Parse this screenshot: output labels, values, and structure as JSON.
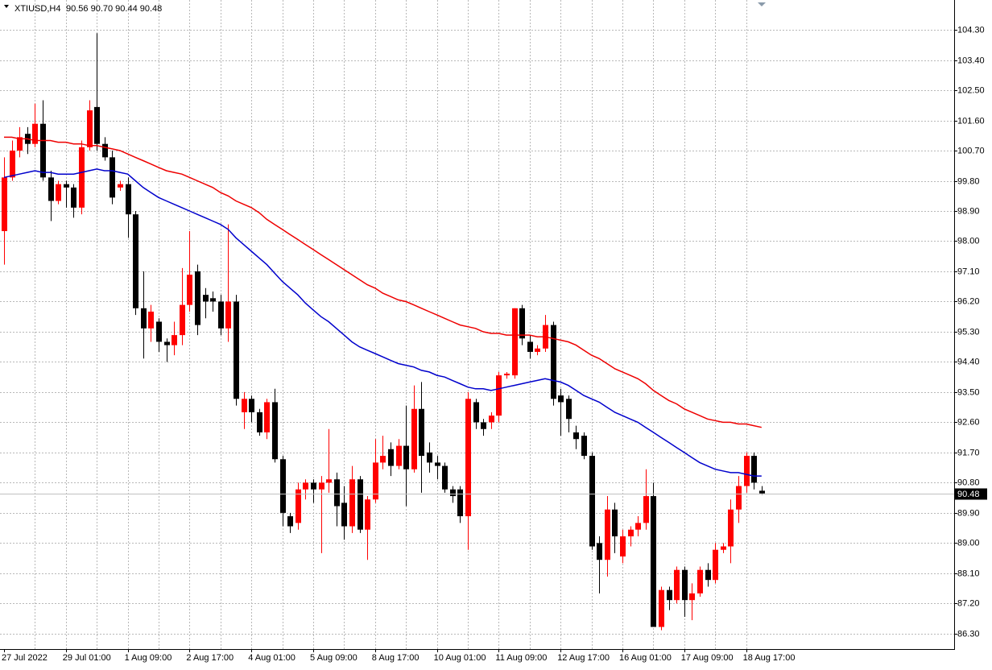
{
  "chart_data": {
    "type": "candlestick",
    "title": "XTIUSD,H4",
    "subtitle": "90.56 90.70 90.44 90.48",
    "categories": [
      "27 Jul 2022",
      null,
      null,
      null,
      null,
      null,
      null,
      null,
      "29 Jul 01:00",
      null,
      null,
      null,
      null,
      null,
      null,
      null,
      "1 Aug 09:00",
      null,
      null,
      null,
      null,
      null,
      null,
      null,
      "2 Aug 17:00",
      null,
      null,
      null,
      null,
      null,
      null,
      null,
      "4 Aug 01:00",
      null,
      null,
      null,
      null,
      null,
      null,
      null,
      "5 Aug 09:00",
      null,
      null,
      null,
      null,
      null,
      null,
      null,
      "8 Aug 17:00",
      null,
      null,
      null,
      null,
      null,
      null,
      null,
      "10 Aug 01:00",
      null,
      null,
      null,
      null,
      null,
      null,
      null,
      "11 Aug 09:00",
      null,
      null,
      null,
      null,
      null,
      null,
      null,
      "12 Aug 17:00",
      null,
      null,
      null,
      null,
      null,
      null,
      null,
      "16 Aug 01:00",
      null,
      null,
      null,
      null,
      null,
      null,
      null,
      "17 Aug 09:00",
      null,
      null,
      null,
      null,
      null,
      null,
      null,
      "18 Aug 17:00",
      null,
      null
    ],
    "open": [
      98.3,
      99.9,
      100.7,
      101.2,
      100.9,
      101.5,
      99.9,
      99.2,
      99.7,
      99.6,
      99.0,
      100.8,
      102.0,
      100.9,
      100.5,
      99.6,
      99.7,
      98.8,
      96.0,
      95.4,
      95.6,
      95.0,
      94.9,
      95.2,
      96.1,
      97.1,
      96.4,
      96.3,
      96.2,
      95.4,
      96.2,
      92.9,
      93.3,
      92.9,
      92.3,
      93.2,
      91.5,
      89.8,
      89.6,
      90.6,
      90.8,
      90.6,
      90.8,
      90.9,
      90.2,
      89.5,
      90.9,
      89.4,
      90.3,
      91.4,
      91.8,
      91.3,
      91.9,
      91.2,
      93.0,
      91.7,
      91.4,
      91.3,
      90.6,
      90.6,
      89.8,
      93.2,
      92.6,
      92.6,
      92.8,
      94.0,
      94.0,
      96.0,
      95.0,
      94.7,
      94.8,
      95.5,
      93.4,
      93.3,
      92.3,
      92.2,
      91.6,
      89.0,
      88.5,
      90.0,
      88.6,
      89.2,
      89.4,
      89.6,
      90.4,
      86.5,
      87.6,
      87.3,
      88.2,
      87.3,
      87.5,
      88.2,
      87.9,
      88.8,
      88.9,
      90.0,
      90.7,
      91.6,
      90.56
    ],
    "high": [
      100.5,
      101.0,
      101.4,
      101.4,
      102.1,
      102.2,
      100.1,
      99.8,
      99.8,
      99.7,
      101.0,
      102.2,
      104.2,
      101.1,
      100.7,
      99.8,
      99.9,
      98.9,
      97.1,
      96.1,
      95.7,
      95.1,
      95.6,
      97.2,
      98.3,
      97.3,
      96.6,
      96.5,
      96.4,
      98.5,
      96.4,
      93.5,
      93.4,
      93.0,
      93.3,
      93.6,
      91.6,
      89.9,
      90.8,
      90.9,
      90.9,
      91.0,
      92.4,
      91.1,
      90.7,
      91.3,
      91.0,
      90.4,
      92.1,
      92.2,
      92.0,
      92.1,
      93.1,
      93.7,
      93.8,
      92.0,
      91.6,
      91.4,
      90.7,
      90.7,
      93.5,
      93.3,
      92.7,
      92.9,
      94.1,
      94.1,
      96.0,
      96.1,
      95.2,
      94.9,
      95.8,
      95.6,
      93.6,
      93.4,
      92.5,
      92.3,
      91.7,
      89.2,
      90.4,
      90.2,
      89.4,
      89.5,
      89.8,
      91.2,
      90.8,
      87.7,
      87.7,
      88.3,
      88.3,
      87.8,
      88.3,
      88.4,
      89.0,
      89.0,
      90.3,
      91.0,
      91.7,
      91.7,
      90.7
    ],
    "low": [
      97.3,
      99.8,
      100.5,
      100.6,
      100.8,
      99.8,
      98.6,
      99.1,
      99.0,
      98.7,
      98.8,
      100.7,
      100.7,
      100.4,
      99.1,
      99.5,
      98.1,
      95.8,
      94.5,
      95.0,
      94.7,
      94.4,
      94.6,
      94.9,
      95.9,
      95.2,
      95.7,
      95.9,
      95.2,
      95.0,
      93.1,
      92.4,
      92.6,
      92.2,
      92.1,
      91.4,
      89.5,
      89.3,
      89.4,
      90.3,
      90.2,
      88.7,
      90.5,
      89.5,
      89.1,
      89.3,
      89.3,
      88.5,
      90.2,
      91.2,
      91.0,
      91.2,
      90.1,
      91.1,
      90.5,
      91.1,
      90.9,
      90.5,
      90.2,
      89.6,
      88.8,
      92.4,
      92.2,
      92.4,
      92.6,
      93.9,
      93.9,
      94.9,
      94.5,
      94.6,
      94.7,
      93.1,
      92.2,
      92.3,
      91.8,
      91.5,
      88.8,
      87.5,
      88.0,
      88.7,
      88.4,
      88.9,
      89.2,
      89.4,
      86.5,
      86.4,
      87.0,
      87.2,
      86.8,
      86.7,
      87.4,
      87.7,
      87.8,
      88.7,
      88.4,
      89.6,
      90.5,
      90.6,
      90.44
    ],
    "close": [
      99.9,
      100.7,
      101.1,
      100.9,
      101.5,
      99.9,
      99.2,
      99.7,
      99.6,
      99.0,
      100.8,
      101.9,
      100.9,
      100.5,
      99.3,
      99.7,
      98.8,
      96.0,
      95.4,
      95.9,
      95.0,
      94.9,
      95.2,
      96.1,
      97.0,
      95.5,
      96.2,
      96.2,
      95.4,
      96.2,
      93.3,
      93.3,
      92.9,
      92.3,
      93.2,
      91.5,
      89.9,
      89.5,
      90.6,
      90.8,
      90.6,
      90.8,
      90.9,
      90.1,
      89.5,
      90.9,
      89.4,
      90.3,
      91.4,
      91.6,
      91.3,
      91.9,
      91.2,
      93.0,
      91.6,
      91.4,
      91.3,
      90.6,
      90.4,
      89.8,
      93.3,
      92.6,
      92.4,
      92.8,
      94.0,
      94.05,
      96.0,
      95.1,
      94.7,
      94.8,
      95.5,
      93.3,
      93.2,
      92.7,
      92.1,
      91.6,
      88.9,
      88.5,
      90.0,
      89.2,
      89.2,
      89.4,
      89.6,
      90.4,
      86.5,
      87.6,
      87.3,
      88.2,
      87.3,
      87.5,
      88.2,
      87.9,
      88.8,
      88.9,
      90.0,
      90.7,
      91.6,
      90.8,
      90.48
    ],
    "up_color": "#ff0000",
    "down_color": "#000000",
    "indicators": [
      {
        "color": "#0000cc",
        "values": [
          99.9,
          99.95,
          100.0,
          100.05,
          100.1,
          100.05,
          100.05,
          100.0,
          100.0,
          100.0,
          100.05,
          100.1,
          100.15,
          100.1,
          100.1,
          100.05,
          100.0,
          99.8,
          99.6,
          99.45,
          99.3,
          99.2,
          99.1,
          99.0,
          98.9,
          98.8,
          98.7,
          98.6,
          98.5,
          98.35,
          98.1,
          97.9,
          97.7,
          97.5,
          97.3,
          97.05,
          96.8,
          96.6,
          96.4,
          96.15,
          95.95,
          95.75,
          95.6,
          95.4,
          95.2,
          95.0,
          94.85,
          94.75,
          94.65,
          94.55,
          94.45,
          94.35,
          94.3,
          94.25,
          94.15,
          94.1,
          94.0,
          93.95,
          93.85,
          93.75,
          93.65,
          93.6,
          93.6,
          93.55,
          93.6,
          93.65,
          93.7,
          93.75,
          93.8,
          93.85,
          93.9,
          93.85,
          93.8,
          93.7,
          93.55,
          93.4,
          93.3,
          93.2,
          93.05,
          92.9,
          92.8,
          92.7,
          92.6,
          92.45,
          92.3,
          92.15,
          92.0,
          91.85,
          91.7,
          91.55,
          91.4,
          91.3,
          91.2,
          91.15,
          91.1,
          91.1,
          91.05,
          91.0,
          91.0
        ]
      },
      {
        "color": "#ee0000",
        "values": [
          101.1,
          101.1,
          101.05,
          101.05,
          101.0,
          101.0,
          101.0,
          100.95,
          100.95,
          100.9,
          100.9,
          100.85,
          100.85,
          100.8,
          100.75,
          100.7,
          100.6,
          100.5,
          100.4,
          100.3,
          100.2,
          100.1,
          100.05,
          100.0,
          99.9,
          99.8,
          99.7,
          99.6,
          99.45,
          99.35,
          99.2,
          99.1,
          99.0,
          98.85,
          98.65,
          98.5,
          98.35,
          98.2,
          98.05,
          97.9,
          97.75,
          97.6,
          97.45,
          97.3,
          97.15,
          97.0,
          96.85,
          96.7,
          96.6,
          96.45,
          96.35,
          96.25,
          96.2,
          96.1,
          96.0,
          95.9,
          95.8,
          95.7,
          95.6,
          95.5,
          95.45,
          95.4,
          95.3,
          95.25,
          95.25,
          95.2,
          95.2,
          95.2,
          95.2,
          95.15,
          95.15,
          95.1,
          95.05,
          95.0,
          94.9,
          94.75,
          94.6,
          94.5,
          94.35,
          94.2,
          94.1,
          94.0,
          93.9,
          93.75,
          93.55,
          93.4,
          93.25,
          93.15,
          93.0,
          92.9,
          92.8,
          92.7,
          92.65,
          92.6,
          92.6,
          92.55,
          92.55,
          92.5,
          92.45
        ]
      }
    ],
    "current_price": 90.48,
    "ylim": [
      85.84,
      105.19
    ],
    "yticks": [
      {
        "value": 104.3,
        "label": "104.30"
      },
      {
        "value": 103.4,
        "label": "103.40"
      },
      {
        "value": 102.5,
        "label": "102.50"
      },
      {
        "value": 101.6,
        "label": "101.60"
      },
      {
        "value": 100.7,
        "label": "100.70"
      },
      {
        "value": 99.8,
        "label": "99.80"
      },
      {
        "value": 98.9,
        "label": "98.90"
      },
      {
        "value": 98.0,
        "label": "98.00"
      },
      {
        "value": 97.1,
        "label": "97.10"
      },
      {
        "value": 96.2,
        "label": "96.20"
      },
      {
        "value": 95.3,
        "label": "95.30"
      },
      {
        "value": 94.4,
        "label": "94.40"
      },
      {
        "value": 93.5,
        "label": "93.50"
      },
      {
        "value": 92.6,
        "label": "92.60"
      },
      {
        "value": 91.7,
        "label": "91.70"
      },
      {
        "value": 90.8,
        "label": "90.80"
      },
      {
        "value": 89.9,
        "label": "89.90"
      },
      {
        "value": 89.0,
        "label": "89.00"
      },
      {
        "value": 88.1,
        "label": "88.10"
      },
      {
        "value": 87.2,
        "label": "87.20"
      },
      {
        "value": 86.3,
        "label": "86.30"
      }
    ],
    "grid": true
  }
}
